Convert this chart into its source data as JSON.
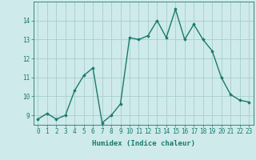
{
  "x": [
    0,
    1,
    2,
    3,
    4,
    5,
    6,
    7,
    8,
    9,
    10,
    11,
    12,
    13,
    14,
    15,
    16,
    17,
    18,
    19,
    20,
    21,
    22,
    23
  ],
  "y": [
    8.8,
    9.1,
    8.8,
    9.0,
    10.3,
    11.1,
    11.5,
    8.6,
    9.0,
    9.6,
    13.1,
    13.0,
    13.2,
    14.0,
    13.1,
    14.6,
    13.0,
    13.8,
    13.0,
    12.4,
    11.0,
    10.1,
    9.8,
    9.7
  ],
  "line_color": "#1a7a6e",
  "marker": "D",
  "marker_size": 1.8,
  "bg_color": "#ceeaea",
  "grid_color": "#aacece",
  "xlabel": "Humidex (Indice chaleur)",
  "xlim": [
    -0.5,
    23.5
  ],
  "ylim": [
    8.5,
    15.0
  ],
  "yticks": [
    9,
    10,
    11,
    12,
    13,
    14
  ],
  "xticks": [
    0,
    1,
    2,
    3,
    4,
    5,
    6,
    7,
    8,
    9,
    10,
    11,
    12,
    13,
    14,
    15,
    16,
    17,
    18,
    19,
    20,
    21,
    22,
    23
  ],
  "tick_fontsize": 5.5,
  "xlabel_fontsize": 6.5,
  "line_width": 1.0
}
